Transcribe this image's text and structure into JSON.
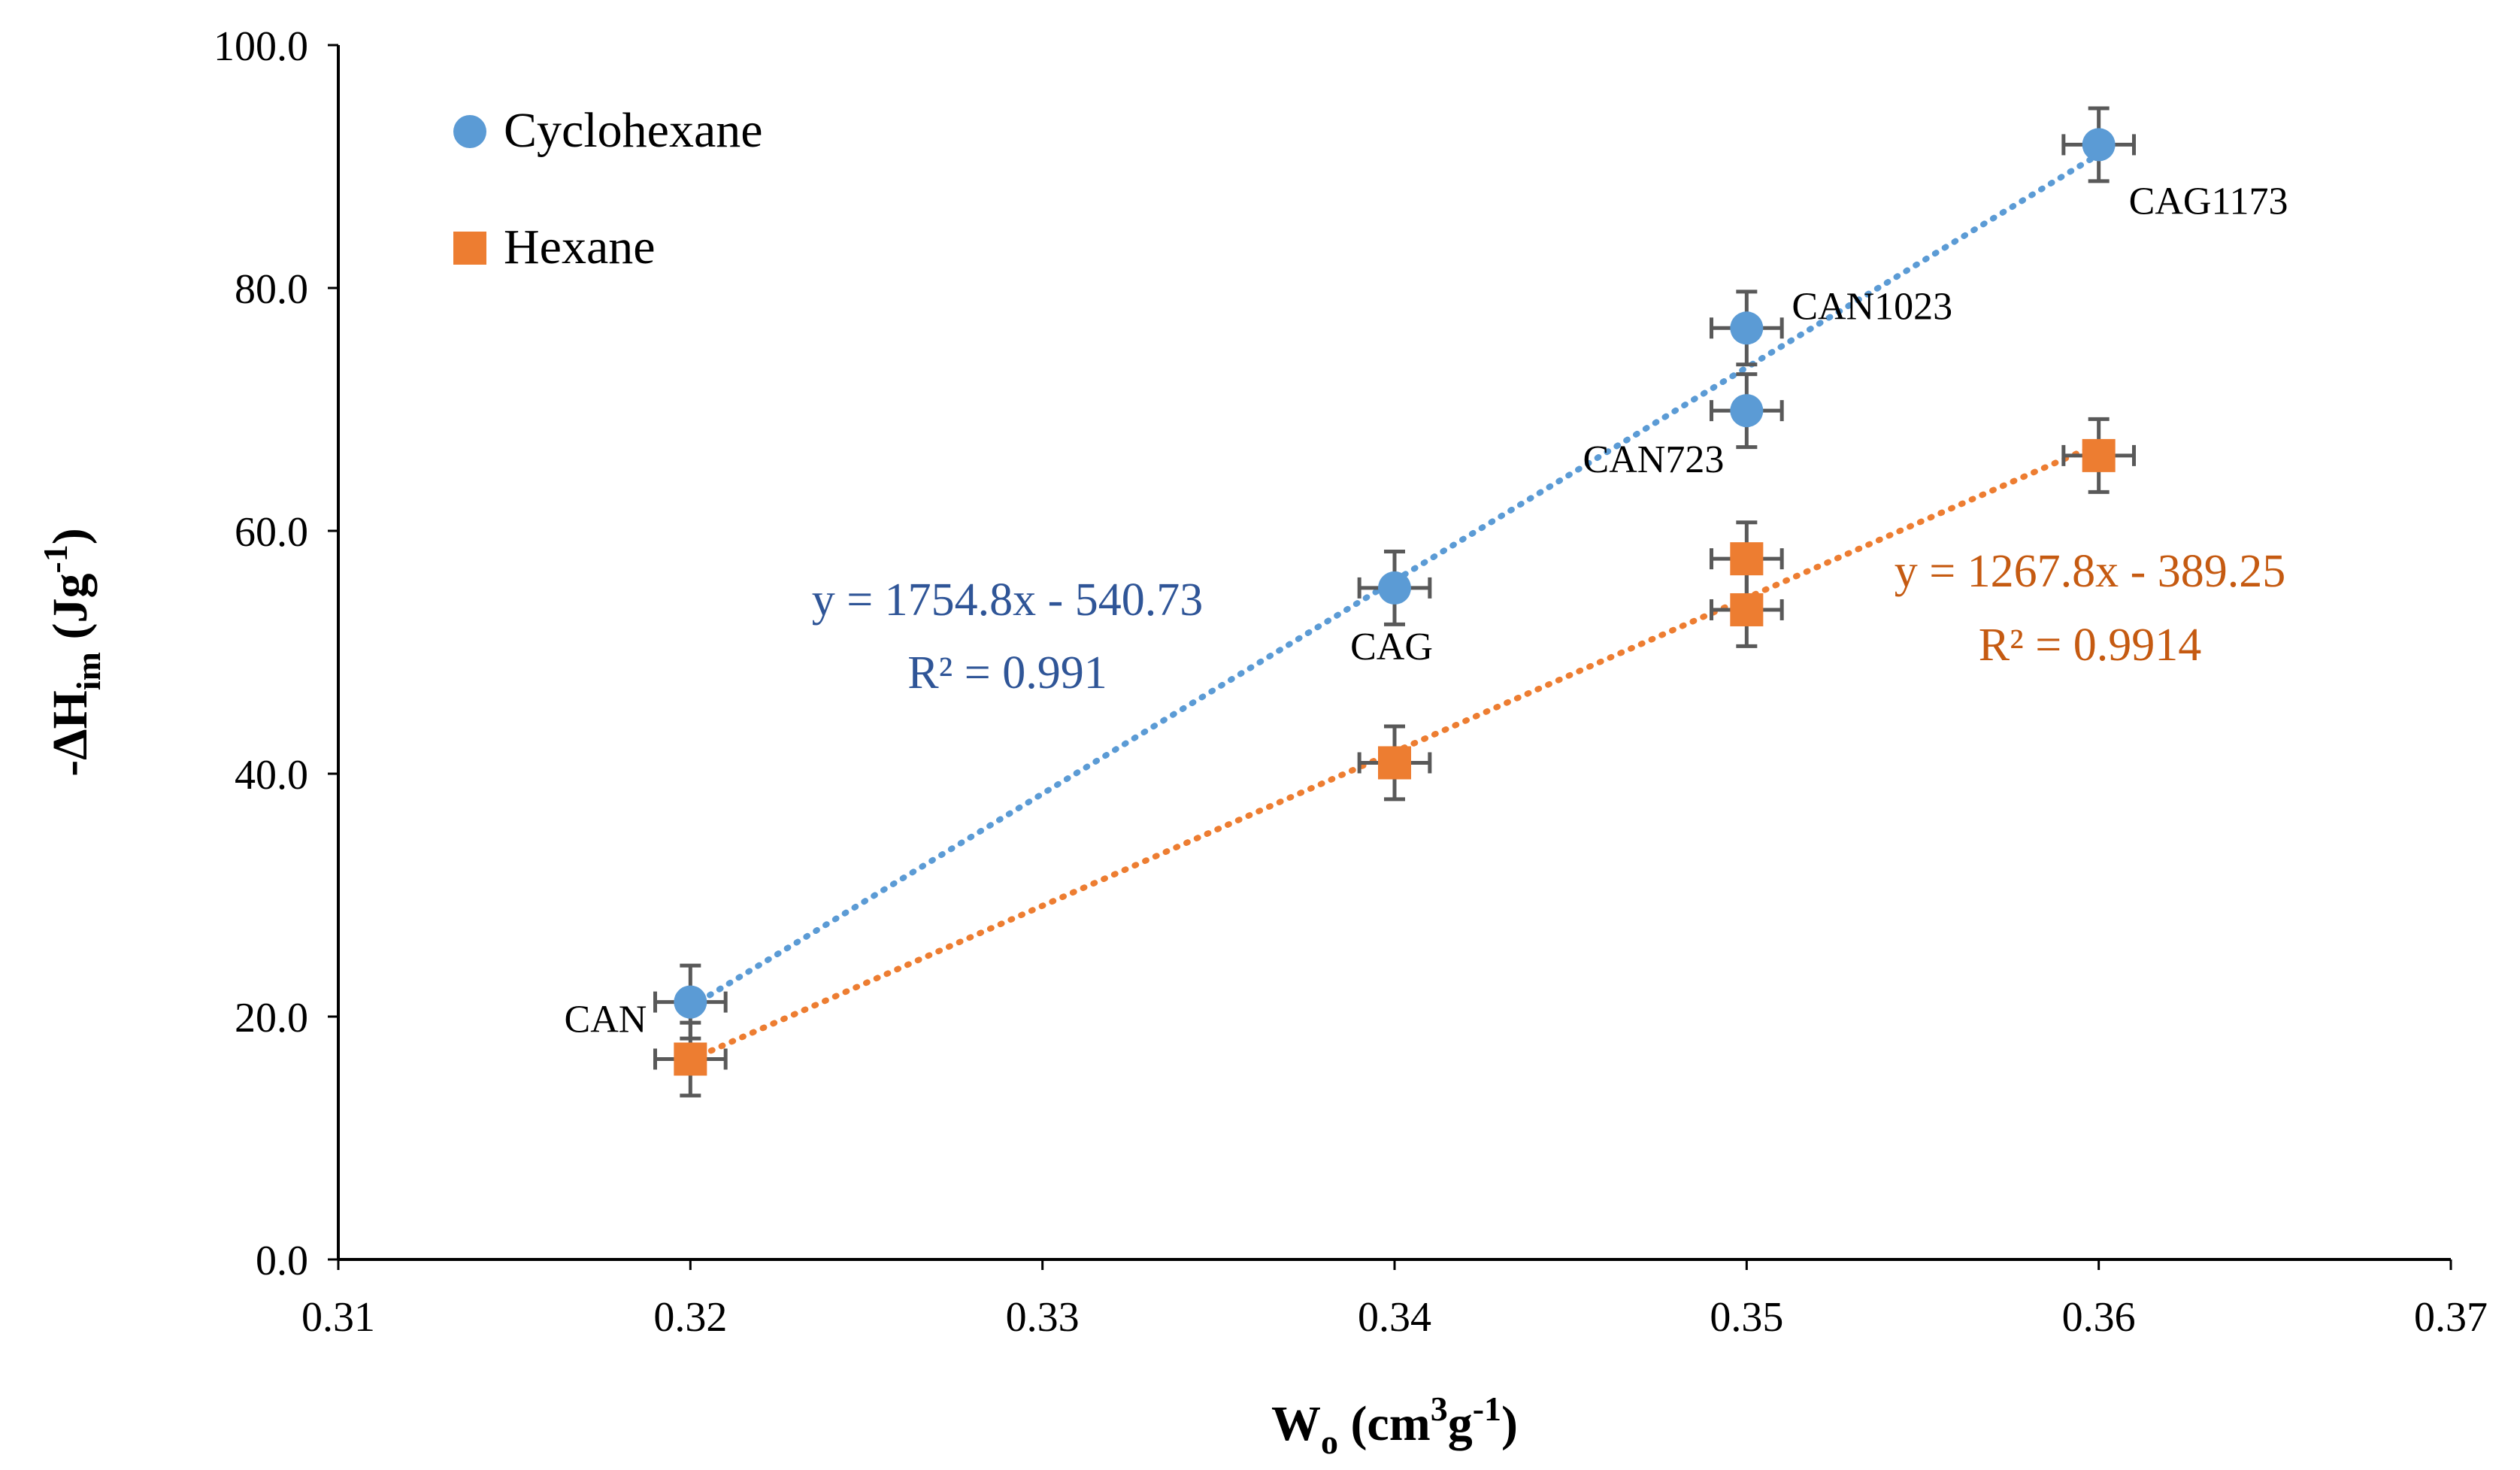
{
  "chart_data": {
    "type": "scatter",
    "title": "",
    "xlabel": {
      "main": "W",
      "sub": "o",
      "rest1": " (cm",
      "sup": "3",
      "rest2": "g",
      "sup2": "-1",
      "rest3": ")"
    },
    "ylabel": {
      "main": "-ΔH",
      "sub": "im",
      "rest1": " (Jg",
      "sup": "-1",
      "rest2": ")"
    },
    "xlim": [
      0.31,
      0.37
    ],
    "ylim": [
      0,
      100
    ],
    "xticks": [
      "0.31",
      "0.32",
      "0.33",
      "0.34",
      "0.35",
      "0.36",
      "0.37"
    ],
    "yticks": [
      "0.0",
      "20.0",
      "40.0",
      "60.0",
      "80.0",
      "100.0"
    ],
    "grid": false,
    "legend_position": "top-left",
    "series": [
      {
        "name": "Cyclohexane",
        "marker": "circle",
        "color": "#5B9BD5",
        "trendline_color": "#5B9BD5",
        "points": [
          {
            "x": 0.32,
            "y": 21.2,
            "label": "CAN"
          },
          {
            "x": 0.34,
            "y": 55.3,
            "label": "CAG"
          },
          {
            "x": 0.35,
            "y": 69.9,
            "label": "CAN723"
          },
          {
            "x": 0.35,
            "y": 76.7,
            "label": "CAN1023"
          },
          {
            "x": 0.36,
            "y": 91.8,
            "label": "CAG1173"
          }
        ],
        "error_x": 0.001,
        "error_y": 3.0,
        "trendline": {
          "slope": 1754.8,
          "intercept": -540.73,
          "x_range": [
            0.32,
            0.36
          ]
        },
        "equation": "y = 1754.8x - 540.73",
        "r2": "R² = 0.991",
        "equation_color": "#2F5597"
      },
      {
        "name": "Hexane",
        "marker": "square",
        "color": "#ED7D31",
        "trendline_color": "#ED7D31",
        "points": [
          {
            "x": 0.32,
            "y": 16.5
          },
          {
            "x": 0.34,
            "y": 40.9
          },
          {
            "x": 0.35,
            "y": 53.5
          },
          {
            "x": 0.35,
            "y": 57.7
          },
          {
            "x": 0.36,
            "y": 66.2
          }
        ],
        "error_x": 0.001,
        "error_y": 3.0,
        "trendline": {
          "slope": 1267.8,
          "intercept": -389.25,
          "x_range": [
            0.32,
            0.36
          ]
        },
        "equation": "y = 1267.8x - 389.25",
        "r2": "R² = 0.9914",
        "equation_color": "#C55A11"
      }
    ]
  }
}
